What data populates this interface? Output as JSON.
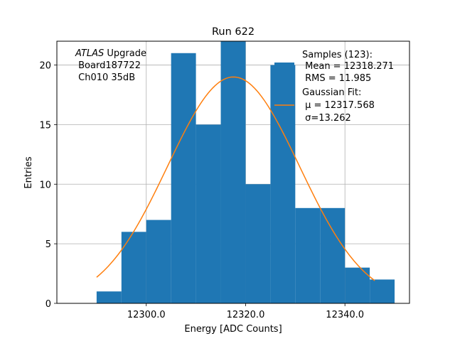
{
  "chart_data": {
    "type": "bar",
    "title": "Run 622",
    "xlabel": "Energy [ADC Counts]",
    "ylabel": "Entries",
    "xlim": [
      12282.0,
      12353.0
    ],
    "ylim": [
      0,
      22.0
    ],
    "grid": true,
    "bins": [
      {
        "lo": 12290.0,
        "hi": 12295.0,
        "count": 1
      },
      {
        "lo": 12295.0,
        "hi": 12300.0,
        "count": 6
      },
      {
        "lo": 12300.0,
        "hi": 12305.0,
        "count": 7
      },
      {
        "lo": 12305.0,
        "hi": 12310.0,
        "count": 21
      },
      {
        "lo": 12310.0,
        "hi": 12315.0,
        "count": 15
      },
      {
        "lo": 12315.0,
        "hi": 12320.0,
        "count": 22
      },
      {
        "lo": 12320.0,
        "hi": 12325.0,
        "count": 10
      },
      {
        "lo": 12325.0,
        "hi": 12330.0,
        "count": 20
      },
      {
        "lo": 12330.0,
        "hi": 12335.0,
        "count": 8
      },
      {
        "lo": 12335.0,
        "hi": 12340.0,
        "count": 8
      },
      {
        "lo": 12340.0,
        "hi": 12345.0,
        "count": 3
      },
      {
        "lo": 12345.0,
        "hi": 12350.0,
        "count": 2
      }
    ],
    "fit": {
      "type": "gaussian",
      "amplitude": 19.0,
      "mu": 12317.568,
      "sigma": 13.262,
      "x_range": [
        12290.0,
        12346.0
      ]
    },
    "xticks": [
      {
        "value": 12300.0,
        "label": "12300.0"
      },
      {
        "value": 12320.0,
        "label": "12320.0"
      },
      {
        "value": 12340.0,
        "label": "12340.0"
      }
    ],
    "yticks": [
      {
        "value": 0,
        "label": "0"
      },
      {
        "value": 5,
        "label": "5"
      },
      {
        "value": 10,
        "label": "10"
      },
      {
        "value": 15,
        "label": "15"
      },
      {
        "value": 20,
        "label": "20"
      }
    ],
    "annotation": {
      "italic": "ATLAS",
      "rest": " Upgrade",
      "line2": " Board187722",
      "line3": " Ch010 35dB"
    },
    "legend": {
      "placement": "top-right",
      "hist_label": [
        "Samples (123):",
        " Mean = 12318.271",
        " RMS = 11.985"
      ],
      "fit_label": [
        "Gaussian Fit:",
        " μ = 12317.568",
        " σ=13.262"
      ]
    },
    "colors": {
      "hist": "#1f77b4",
      "fit": "#ff7f0e",
      "grid": "#b0b0b0"
    }
  }
}
